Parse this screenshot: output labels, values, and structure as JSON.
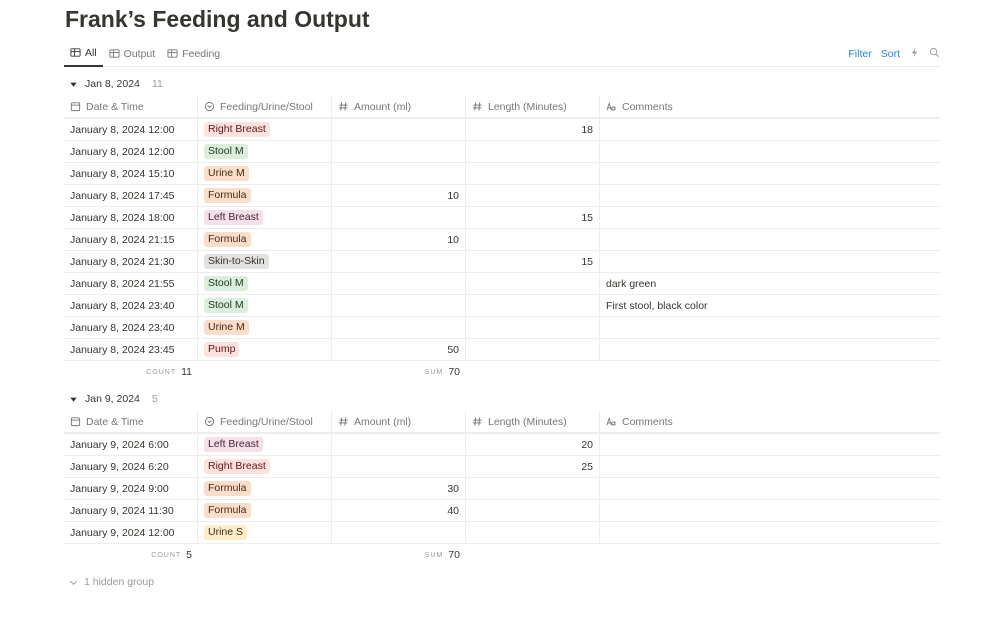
{
  "title": "Frank’s Feeding and Output",
  "tabs": [
    "All",
    "Output",
    "Feeding"
  ],
  "actions": [
    "Filter",
    "Sort"
  ],
  "columns": [
    "Date & Time",
    "Feeding/Urine/Stool",
    "Amount (ml)",
    "Length (Minutes)",
    "Comments"
  ],
  "groups": [
    {
      "label": "Jan 8, 2024",
      "count": 11,
      "rows": [
        [
          "January 8, 2024 12:00",
          {
            "text": "Right Breast",
            "color": "red"
          },
          null,
          18,
          null
        ],
        [
          "January 8, 2024 12:00",
          {
            "text": "Stool M",
            "color": "green"
          },
          null,
          null,
          null
        ],
        [
          "January 8, 2024 15:10",
          {
            "text": "Urine M",
            "color": "orange"
          },
          null,
          null,
          null
        ],
        [
          "January 8, 2024 17:45",
          {
            "text": "Formula",
            "color": "orange"
          },
          10,
          null,
          null
        ],
        [
          "January 8, 2024 18:00",
          {
            "text": "Left Breast",
            "color": "pink"
          },
          null,
          15,
          null
        ],
        [
          "January 8, 2024 21:15",
          {
            "text": "Formula",
            "color": "orange"
          },
          10,
          null,
          null
        ],
        [
          "January 8, 2024 21:30",
          {
            "text": "Skin-to-Skin",
            "color": "gray"
          },
          null,
          15,
          null
        ],
        [
          "January 8, 2024 21:55",
          {
            "text": "Stool M",
            "color": "green"
          },
          null,
          null,
          "dark green"
        ],
        [
          "January 8, 2024 23:40",
          {
            "text": "Stool M",
            "color": "green"
          },
          null,
          null,
          "First stool, black color"
        ],
        [
          "January 8, 2024 23:40",
          {
            "text": "Urine M",
            "color": "orange"
          },
          null,
          null,
          null
        ],
        [
          "January 8, 2024 23:45",
          {
            "text": "Pump",
            "color": "red"
          },
          50,
          null,
          null
        ]
      ],
      "footer": {
        "count_label": "COUNT",
        "count": 11,
        "sum_label": "SUM",
        "sum": 70
      }
    },
    {
      "label": "Jan 9, 2024",
      "count": 5,
      "rows": [
        [
          "January 9, 2024 6:00",
          {
            "text": "Left Breast",
            "color": "pink"
          },
          null,
          20,
          null
        ],
        [
          "January 9, 2024 6:20",
          {
            "text": "Right Breast",
            "color": "red"
          },
          null,
          25,
          null
        ],
        [
          "January 9, 2024 9:00",
          {
            "text": "Formula",
            "color": "orange"
          },
          30,
          null,
          null
        ],
        [
          "January 9, 2024 11:30",
          {
            "text": "Formula",
            "color": "orange"
          },
          40,
          null,
          null
        ],
        [
          "January 9, 2024 12:00",
          {
            "text": "Urine S",
            "color": "yellow"
          },
          null,
          null,
          null
        ]
      ],
      "footer": {
        "count_label": "COUNT",
        "count": 5,
        "sum_label": "SUM",
        "sum": 70
      }
    }
  ],
  "hidden_groups": "1 hidden group"
}
